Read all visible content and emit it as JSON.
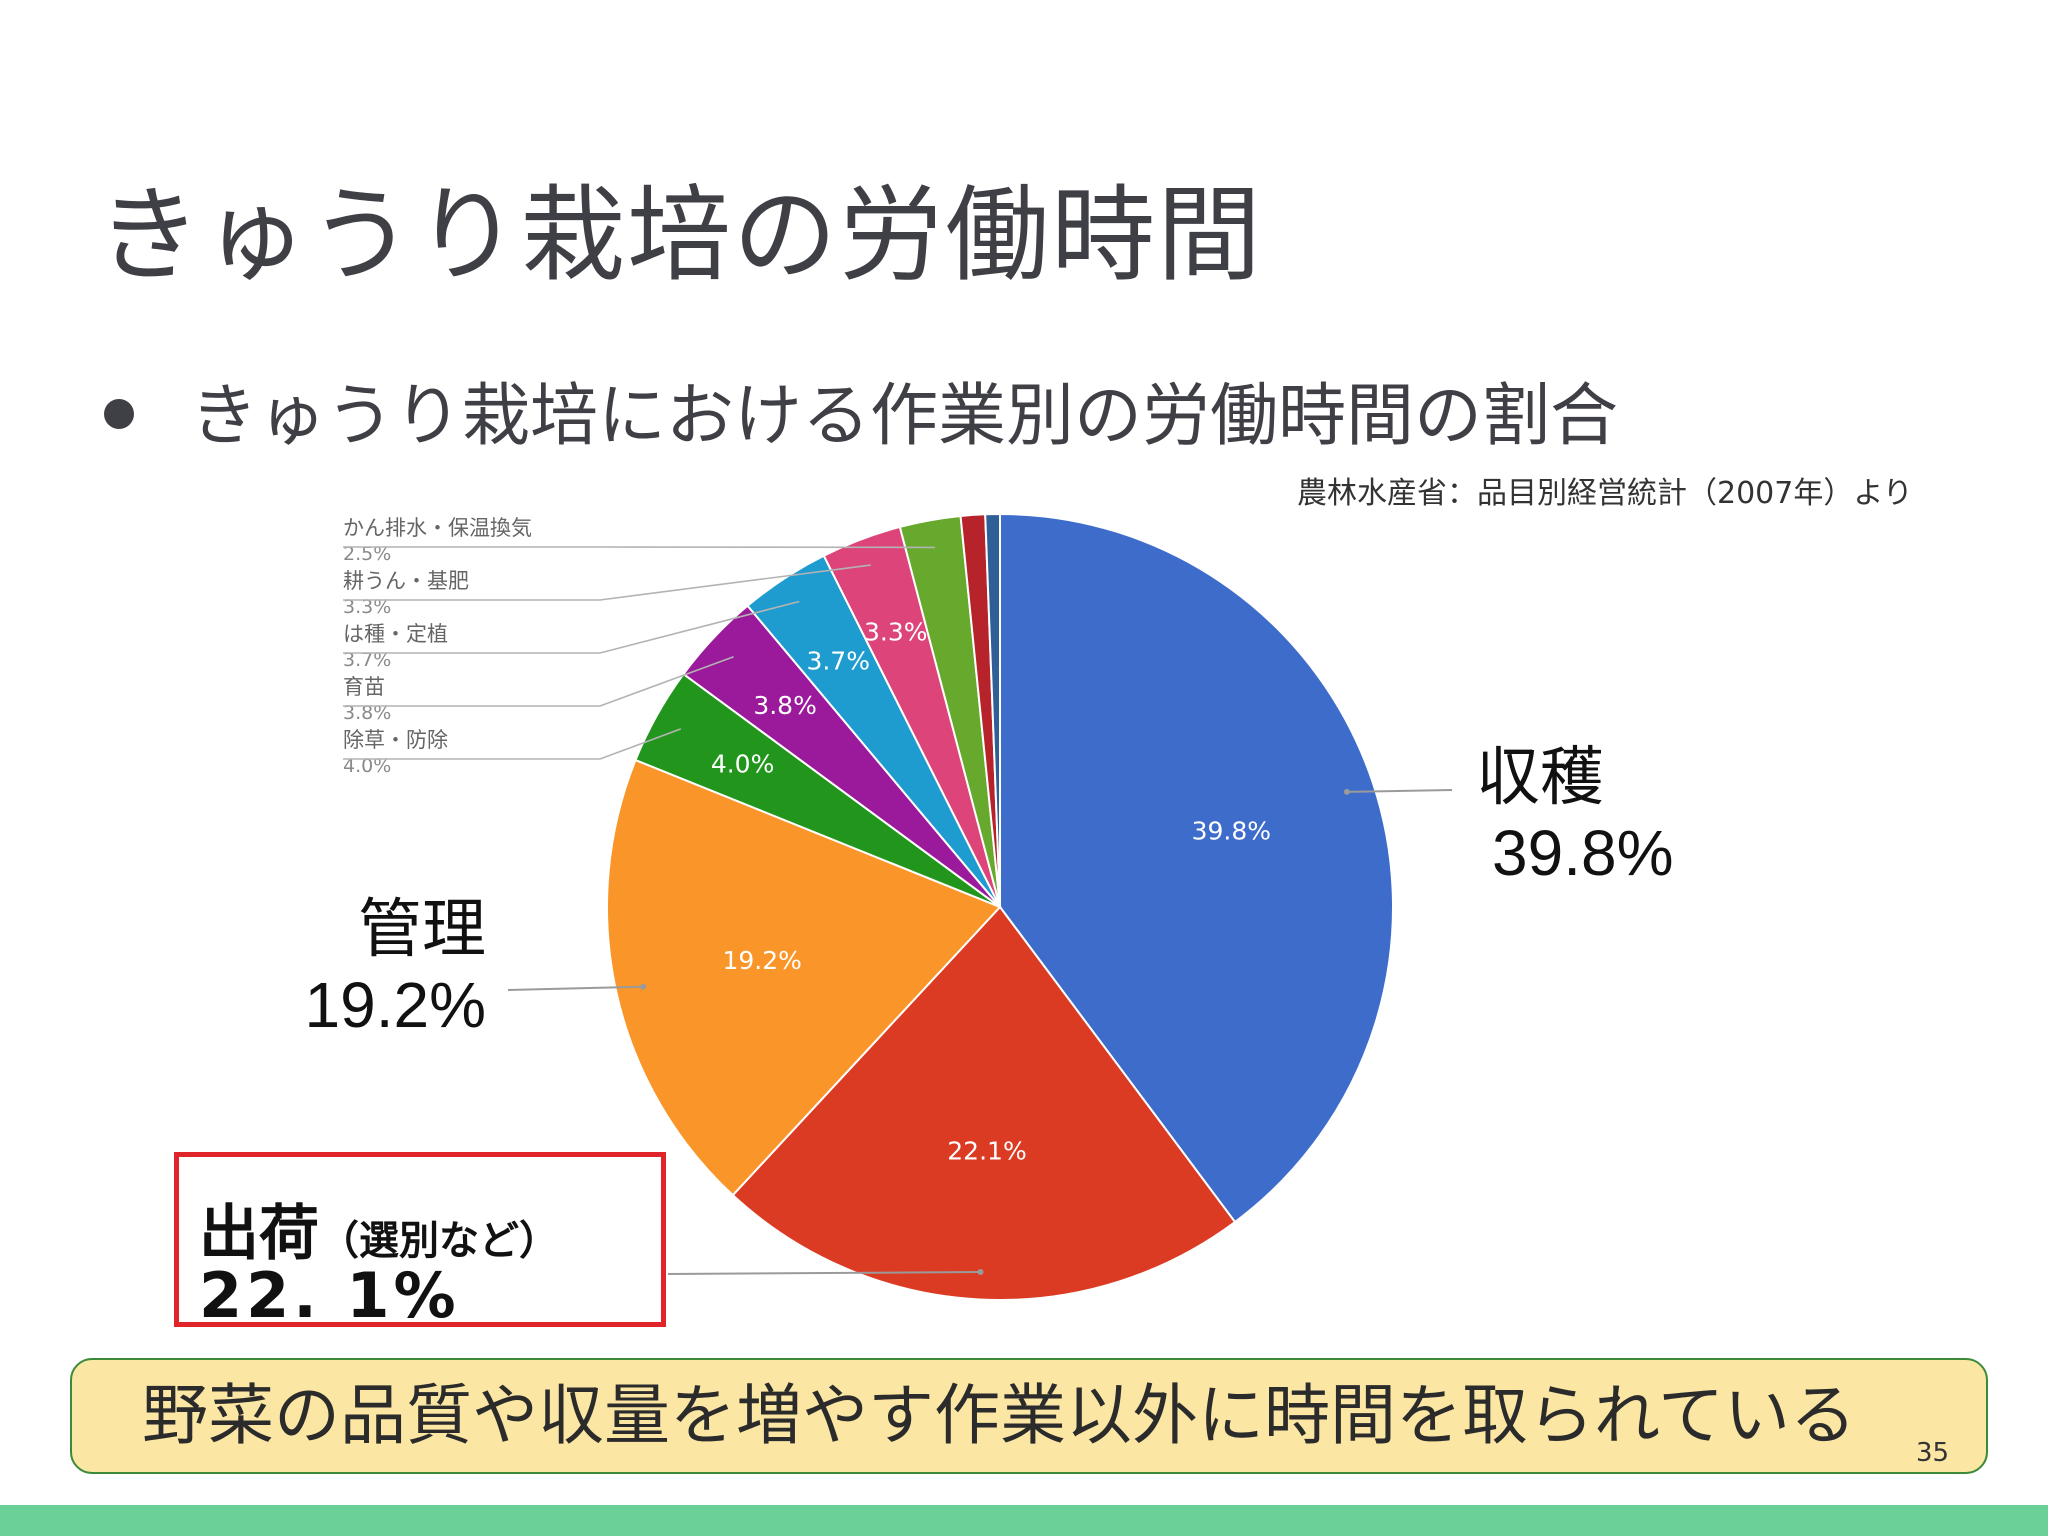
{
  "slide": {
    "title": "きゅうり栽培の労働時間",
    "bullet": "きゅうり栽培における作業別の労働時間の割合",
    "source": "農林水産省：品目別経営統計（2007年）より",
    "message": "野菜の品質や収量を増やす作業以外に時間を取られている",
    "page_number": "35"
  },
  "chart_data": {
    "type": "pie",
    "title": "",
    "start_angle_deg": 0,
    "direction": "clockwise",
    "slices": [
      {
        "label": "収穫",
        "value": 39.8,
        "display": "39.8%",
        "color": "#3d6ccb"
      },
      {
        "label": "出荷（選別など）",
        "value": 22.1,
        "display": "22.1%",
        "color": "#dc3b23"
      },
      {
        "label": "管理",
        "value": 19.2,
        "display": "19.2%",
        "color": "#fa9629"
      },
      {
        "label": "除草・防除",
        "value": 4.0,
        "display": "4.0%",
        "color": "#22951d"
      },
      {
        "label": "育苗",
        "value": 3.8,
        "display": "3.8%",
        "color": "#9b1a9b"
      },
      {
        "label": "は種・定植",
        "value": 3.7,
        "display": "3.7%",
        "color": "#1f9ccf"
      },
      {
        "label": "耕うん・基肥",
        "value": 3.3,
        "display": "3.3%",
        "color": "#dd4479"
      },
      {
        "label": "かん排水・保温換気",
        "value": 2.5,
        "display": "2.5%",
        "color": "#66a92c"
      },
      {
        "label": "",
        "value": 1.0,
        "display": "",
        "color": "#b6232a"
      },
      {
        "label": "",
        "value": 0.6,
        "display": "",
        "color": "#2f5f97"
      }
    ],
    "small_legend": [
      {
        "name": "かん排水・保温換気",
        "value": "2.5%"
      },
      {
        "name": "耕うん・基肥",
        "value": "3.3%"
      },
      {
        "name": "は種・定植",
        "value": "3.7%"
      },
      {
        "name": "育苗",
        "value": "3.8%"
      },
      {
        "name": "除草・防除",
        "value": "4.0%"
      }
    ],
    "callouts": {
      "harvest": {
        "name": "収穫",
        "value": "39.8%"
      },
      "management": {
        "name": "管理",
        "value": "19.2%"
      },
      "shipping": {
        "name": "出荷",
        "sub": "（選別など）",
        "value": "22. 1%"
      }
    }
  }
}
